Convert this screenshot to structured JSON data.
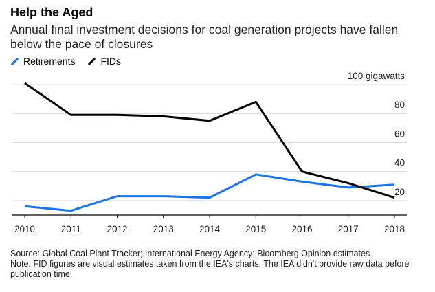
{
  "title": "Help the Aged",
  "subtitle": "Annual final investment decisions for coal generation projects have fallen below the pace of closures",
  "legend": [
    {
      "label": "Retirements",
      "color": "#1a73e8"
    },
    {
      "label": "FIDs",
      "color": "#000000"
    }
  ],
  "source": "Source: Global Coal Plant Tracker; International Energy Agency; Bloomberg Opinion estimates",
  "note": "Note: FID figures are visual estimates taken from the IEA's charts. The IEA didn't provide raw data before publication time.",
  "chart_data": {
    "type": "line",
    "x": [
      "2010",
      "2011",
      "2012",
      "2013",
      "2014",
      "2015",
      "2016",
      "2017",
      "2018"
    ],
    "series": [
      {
        "name": "Retirements",
        "color": "#1a73e8",
        "values": [
          16,
          13,
          23,
          23,
          22,
          38,
          33,
          29,
          31
        ]
      },
      {
        "name": "FIDs",
        "color": "#000000",
        "values": [
          101,
          79,
          79,
          78,
          75,
          88,
          40,
          32,
          22
        ]
      }
    ],
    "yticks": [
      {
        "value": 100,
        "label": "100 gigawatts"
      },
      {
        "value": 80,
        "label": "80"
      },
      {
        "value": 60,
        "label": "60"
      },
      {
        "value": 40,
        "label": "40"
      },
      {
        "value": 20,
        "label": "20"
      }
    ],
    "ylim": [
      10,
      100
    ],
    "grid": true
  }
}
